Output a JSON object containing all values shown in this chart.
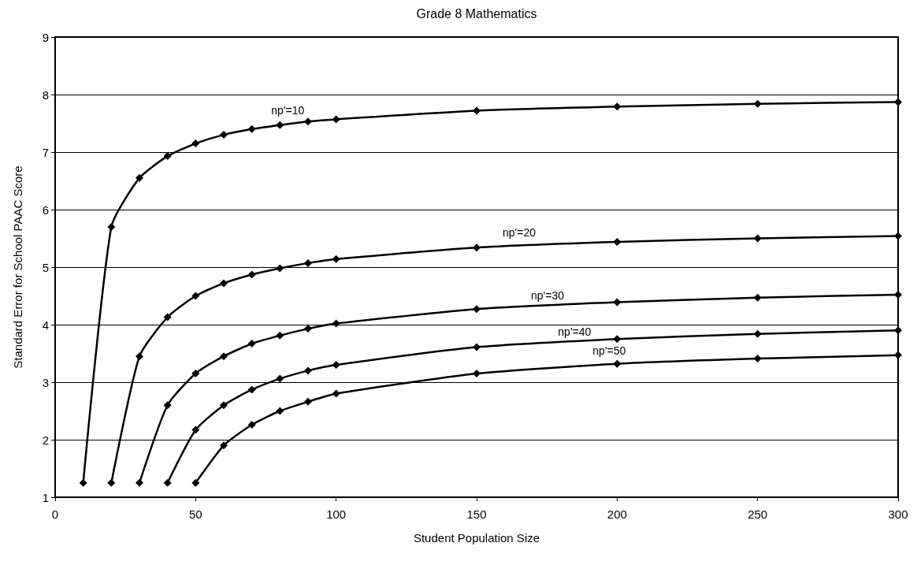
{
  "chart_data": {
    "type": "line",
    "title": "Grade 8 Mathematics",
    "xlabel": "Student Population Size",
    "ylabel": "Standard Error for School PAAC Score",
    "x": [
      10,
      20,
      30,
      40,
      50,
      60,
      70,
      80,
      90,
      100,
      150,
      200,
      250,
      300
    ],
    "series": [
      {
        "name": "np'=10",
        "color": "#000000",
        "values": [
          1.25,
          5.7,
          6.55,
          6.93,
          7.15,
          7.3,
          7.4,
          7.47,
          7.53,
          7.57,
          7.72,
          7.79,
          7.84,
          7.87
        ]
      },
      {
        "name": "np'=20",
        "color": "#000000",
        "values": [
          null,
          1.25,
          3.45,
          4.13,
          4.5,
          4.72,
          4.87,
          4.98,
          5.07,
          5.14,
          5.34,
          5.44,
          5.5,
          5.54
        ]
      },
      {
        "name": "np'=30",
        "color": "#000000",
        "values": [
          null,
          null,
          1.25,
          2.6,
          3.15,
          3.45,
          3.67,
          3.81,
          3.93,
          4.02,
          4.27,
          4.39,
          4.47,
          4.52
        ]
      },
      {
        "name": "np'=40",
        "color": "#000000",
        "values": [
          null,
          null,
          null,
          1.25,
          2.17,
          2.6,
          2.87,
          3.06,
          3.2,
          3.3,
          3.61,
          3.75,
          3.84,
          3.9
        ]
      },
      {
        "name": "np'=50",
        "color": "#000000",
        "values": [
          null,
          null,
          null,
          null,
          1.25,
          1.9,
          2.26,
          2.5,
          2.66,
          2.8,
          3.15,
          3.32,
          3.41,
          3.47
        ]
      }
    ],
    "xlim": [
      0,
      300
    ],
    "xticks": [
      0,
      50,
      100,
      150,
      200,
      250,
      300
    ],
    "ylim": [
      1,
      9
    ],
    "yticks": [
      1,
      2,
      3,
      4,
      5,
      6,
      7,
      8,
      9
    ],
    "grid": "y",
    "legend": false,
    "marker": "diamond",
    "line_style": "solid"
  }
}
